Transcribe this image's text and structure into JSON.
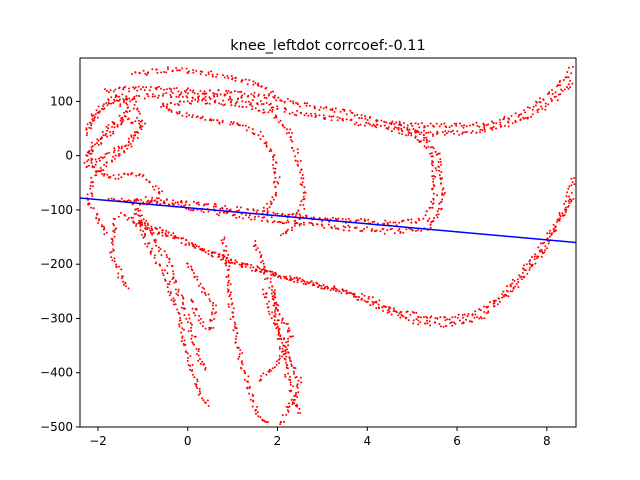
{
  "chart_data": {
    "type": "scatter",
    "title": "knee_leftdot corrcoef:-0.11",
    "xlabel": "",
    "ylabel": "",
    "xlim": [
      -2.4,
      8.65
    ],
    "ylim": [
      -500,
      180
    ],
    "x_ticks": [
      -2,
      0,
      2,
      4,
      6,
      8
    ],
    "y_ticks": [
      100,
      0,
      -100,
      -200,
      -300,
      -400,
      -500
    ],
    "x_tick_labels": [
      "−2",
      "0",
      "2",
      "4",
      "6",
      "8"
    ],
    "y_tick_labels": [
      "100",
      "0",
      "−100",
      "−200",
      "−300",
      "−400",
      "−500"
    ],
    "grid": false,
    "legend": "none",
    "point_color": "#ff0000",
    "line_color": "#0000ff",
    "corrcoef": -0.11,
    "regression_line": {
      "x": [
        -2.4,
        8.65
      ],
      "y": [
        -78,
        -160
      ]
    },
    "paths": [
      {
        "name": "upper-loop",
        "points": [
          [
            -1.8,
            120
          ],
          [
            -1,
            125
          ],
          [
            0,
            120
          ],
          [
            1,
            115
          ],
          [
            1.8,
            110
          ],
          [
            2.5,
            95
          ],
          [
            3.5,
            80
          ],
          [
            4.5,
            60
          ],
          [
            5.2,
            40
          ],
          [
            5.6,
            0
          ],
          [
            5.7,
            -60
          ],
          [
            5.6,
            -110
          ],
          [
            5.3,
            -135
          ],
          [
            4.5,
            -140
          ],
          [
            3,
            -130
          ],
          [
            2,
            -120
          ],
          [
            1,
            -110
          ],
          [
            0,
            -95
          ],
          [
            -1,
            -85
          ],
          [
            -1.8,
            -82
          ]
        ]
      },
      {
        "name": "upper-loop-inner",
        "points": [
          [
            -1.6,
            105
          ],
          [
            -0.5,
            112
          ],
          [
            0.8,
            108
          ],
          [
            1.6,
            98
          ],
          [
            2.3,
            80
          ],
          [
            3.5,
            65
          ],
          [
            4.6,
            48
          ],
          [
            5.3,
            25
          ],
          [
            5.5,
            -20
          ],
          [
            5.5,
            -80
          ],
          [
            5.3,
            -118
          ],
          [
            4.6,
            -125
          ],
          [
            3.2,
            -118
          ],
          [
            2,
            -108
          ],
          [
            1,
            -98
          ],
          [
            0,
            -88
          ],
          [
            -1,
            -80
          ]
        ]
      },
      {
        "name": "right-upper-loop",
        "points": [
          [
            4.6,
            60
          ],
          [
            5.4,
            55
          ],
          [
            6.3,
            55
          ],
          [
            7,
            65
          ],
          [
            7.6,
            85
          ],
          [
            8.1,
            115
          ],
          [
            8.6,
            165
          ]
        ]
      },
      {
        "name": "right-upper-loop-2",
        "points": [
          [
            4.8,
            45
          ],
          [
            5.6,
            40
          ],
          [
            6.4,
            45
          ],
          [
            7.1,
            55
          ],
          [
            7.7,
            75
          ],
          [
            8.2,
            105
          ],
          [
            8.6,
            140
          ]
        ]
      },
      {
        "name": "lower-loop",
        "points": [
          [
            -1.5,
            -110
          ],
          [
            -0.5,
            -140
          ],
          [
            0.5,
            -180
          ],
          [
            1.5,
            -210
          ],
          [
            2.5,
            -230
          ],
          [
            3.5,
            -250
          ],
          [
            4.3,
            -280
          ],
          [
            5,
            -305
          ],
          [
            5.8,
            -312
          ],
          [
            6.5,
            -300
          ],
          [
            7.2,
            -250
          ],
          [
            7.9,
            -180
          ],
          [
            8.4,
            -100
          ],
          [
            8.65,
            -30
          ]
        ]
      },
      {
        "name": "lower-loop-2",
        "points": [
          [
            -1.2,
            -125
          ],
          [
            0,
            -160
          ],
          [
            1,
            -195
          ],
          [
            2,
            -220
          ],
          [
            3,
            -240
          ],
          [
            4,
            -262
          ],
          [
            4.8,
            -290
          ],
          [
            5.6,
            -300
          ],
          [
            6.3,
            -295
          ],
          [
            7,
            -260
          ],
          [
            7.6,
            -200
          ],
          [
            8.2,
            -130
          ],
          [
            8.6,
            -70
          ]
        ]
      },
      {
        "name": "left-cluster-a",
        "points": [
          [
            -2.3,
            40
          ],
          [
            -2,
            80
          ],
          [
            -1.6,
            100
          ],
          [
            -1.3,
            90
          ],
          [
            -1.5,
            60
          ],
          [
            -1.9,
            30
          ],
          [
            -2.2,
            0
          ],
          [
            -2,
            -30
          ],
          [
            -1.6,
            -40
          ],
          [
            -1.2,
            -30
          ],
          [
            -0.8,
            -50
          ],
          [
            -0.6,
            -70
          ],
          [
            -0.9,
            -90
          ],
          [
            -1.4,
            -80
          ]
        ]
      },
      {
        "name": "left-cluster-b",
        "points": [
          [
            -2.3,
            -10
          ],
          [
            -2.1,
            20
          ],
          [
            -1.8,
            50
          ],
          [
            -1.4,
            75
          ],
          [
            -1.1,
            55
          ],
          [
            -1.3,
            20
          ],
          [
            -1.7,
            -10
          ],
          [
            -2.1,
            -40
          ],
          [
            -2.2,
            -80
          ],
          [
            -2,
            -120
          ],
          [
            -1.8,
            -150
          ]
        ]
      },
      {
        "name": "left-cluster-c",
        "points": [
          [
            -2.2,
            60
          ],
          [
            -1.9,
            95
          ],
          [
            -1.5,
            110
          ],
          [
            -1.2,
            95
          ],
          [
            -1.0,
            60
          ],
          [
            -1.2,
            30
          ],
          [
            -1.6,
            10
          ],
          [
            -2.0,
            -5
          ],
          [
            -2.3,
            -25
          ]
        ]
      },
      {
        "name": "descending-a",
        "points": [
          [
            -1.2,
            -90
          ],
          [
            -1,
            -140
          ],
          [
            -0.8,
            -180
          ],
          [
            -0.5,
            -220
          ],
          [
            -0.3,
            -270
          ],
          [
            -0.1,
            -330
          ],
          [
            0.1,
            -390
          ],
          [
            0.3,
            -440
          ],
          [
            0.5,
            -465
          ]
        ]
      },
      {
        "name": "descending-b",
        "points": [
          [
            -1.1,
            -100
          ],
          [
            -0.7,
            -160
          ],
          [
            -0.4,
            -200
          ],
          [
            -0.2,
            -250
          ],
          [
            0,
            -300
          ],
          [
            0.2,
            -360
          ],
          [
            0.4,
            -400
          ]
        ]
      },
      {
        "name": "descending-c",
        "points": [
          [
            -1.6,
            -120
          ],
          [
            -1.7,
            -180
          ],
          [
            -1.5,
            -220
          ],
          [
            -1.3,
            -250
          ]
        ]
      },
      {
        "name": "mid-spike",
        "points": [
          [
            0.8,
            -150
          ],
          [
            0.9,
            -220
          ],
          [
            1,
            -300
          ],
          [
            1.2,
            -380
          ],
          [
            1.4,
            -440
          ],
          [
            1.6,
            -480
          ],
          [
            1.8,
            -500
          ]
        ]
      },
      {
        "name": "mid-spike-2",
        "points": [
          [
            1.5,
            -160
          ],
          [
            1.8,
            -230
          ],
          [
            2.0,
            -280
          ],
          [
            2.3,
            -330
          ],
          [
            2.1,
            -370
          ],
          [
            1.8,
            -400
          ],
          [
            1.5,
            -420
          ]
        ]
      },
      {
        "name": "mid-column",
        "points": [
          [
            1.7,
            -250
          ],
          [
            1.9,
            -300
          ],
          [
            2.2,
            -360
          ],
          [
            2.5,
            -420
          ],
          [
            2.3,
            -460
          ],
          [
            2.0,
            -500
          ]
        ]
      },
      {
        "name": "mid-column-2",
        "points": [
          [
            1.9,
            -250
          ],
          [
            2.0,
            -320
          ],
          [
            2.2,
            -400
          ],
          [
            2.5,
            -480
          ]
        ]
      },
      {
        "name": "loop-mid",
        "points": [
          [
            0,
            -200
          ],
          [
            0.3,
            -240
          ],
          [
            0.6,
            -280
          ],
          [
            0.5,
            -320
          ],
          [
            0.2,
            -300
          ],
          [
            0.1,
            -260
          ]
        ]
      },
      {
        "name": "top-mid-arc",
        "points": [
          [
            -1.2,
            150
          ],
          [
            -0.3,
            160
          ],
          [
            0.6,
            150
          ],
          [
            1.2,
            140
          ],
          [
            1.6,
            130
          ],
          [
            2.0,
            110
          ]
        ]
      },
      {
        "name": "top-mid-arc-2",
        "points": [
          [
            -0.5,
            95
          ],
          [
            0.3,
            100
          ],
          [
            1.1,
            95
          ],
          [
            1.9,
            80
          ],
          [
            2.3,
            40
          ],
          [
            2.5,
            -20
          ],
          [
            2.6,
            -80
          ],
          [
            2.4,
            -130
          ],
          [
            2.0,
            -150
          ]
        ]
      },
      {
        "name": "loop-upper-left",
        "points": [
          [
            -0.6,
            90
          ],
          [
            0.2,
            70
          ],
          [
            1.0,
            60
          ],
          [
            1.6,
            40
          ],
          [
            1.9,
            0
          ],
          [
            2.0,
            -40
          ],
          [
            1.9,
            -80
          ],
          [
            1.6,
            -110
          ]
        ]
      }
    ]
  }
}
